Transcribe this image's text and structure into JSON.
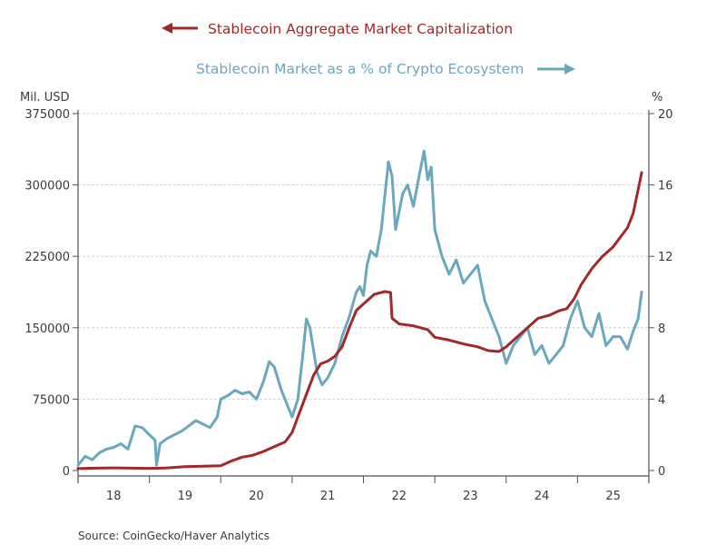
{
  "chart_data": {
    "type": "line",
    "title": "",
    "legend": [
      {
        "name": "Stablecoin Aggregate Market Capitalization",
        "axis": "left",
        "color": "#a3282b",
        "arrow": "left"
      },
      {
        "name": "Stablecoin Market as a % of Crypto Ecosystem",
        "axis": "right",
        "color": "#6aa8be",
        "arrow": "right"
      }
    ],
    "legend_placement": "top-center",
    "left_axis": {
      "label": "Mil. USD",
      "range": [
        0,
        375000
      ],
      "ticks": [
        "0",
        "75000",
        "150000",
        "225000",
        "300000",
        "375000"
      ]
    },
    "right_axis": {
      "label": "%",
      "range": [
        0,
        20
      ],
      "ticks": [
        "0",
        "4",
        "8",
        "12",
        "16",
        "20"
      ]
    },
    "x_axis": {
      "range": [
        2018.0,
        2026.0
      ],
      "tick_labels": [
        "18",
        "19",
        "20",
        "21",
        "22",
        "23",
        "24",
        "25"
      ]
    },
    "grid": "horizontal dashed",
    "source": "Source:  CoinGecko/Haver Analytics",
    "series": [
      {
        "name": "Stablecoin Aggregate Market Capitalization",
        "axis": "left",
        "x": [
          2018.0,
          2018.25,
          2018.5,
          2018.75,
          2019.0,
          2019.1,
          2019.25,
          2019.5,
          2019.75,
          2020.0,
          2020.15,
          2020.3,
          2020.45,
          2020.6,
          2020.75,
          2020.9,
          2021.0,
          2021.1,
          2021.2,
          2021.3,
          2021.4,
          2021.5,
          2021.6,
          2021.7,
          2021.8,
          2021.9,
          2022.0,
          2022.15,
          2022.3,
          2022.38,
          2022.4,
          2022.5,
          2022.7,
          2022.9,
          2023.0,
          2023.2,
          2023.4,
          2023.6,
          2023.75,
          2023.9,
          2024.0,
          2024.15,
          2024.3,
          2024.45,
          2024.6,
          2024.75,
          2024.85,
          2024.95,
          2025.05,
          2025.2,
          2025.35,
          2025.5,
          2025.6,
          2025.7,
          2025.78,
          2025.85,
          2025.9
        ],
        "values": [
          2000,
          2500,
          2800,
          2500,
          2300,
          2400,
          2800,
          4000,
          4500,
          5000,
          10000,
          14000,
          16000,
          20000,
          25000,
          30000,
          40000,
          60000,
          80000,
          100000,
          112000,
          115000,
          120000,
          130000,
          150000,
          168000,
          175000,
          185000,
          188000,
          187000,
          160000,
          154000,
          152000,
          148000,
          140000,
          137000,
          133000,
          130000,
          126000,
          125000,
          130000,
          140000,
          150000,
          160000,
          163000,
          168000,
          170000,
          180000,
          195000,
          212000,
          225000,
          235000,
          245000,
          255000,
          270000,
          295000,
          313000
        ]
      },
      {
        "name": "Stablecoin Market as a % of Crypto Ecosystem",
        "axis": "right",
        "x": [
          2018.0,
          2018.1,
          2018.2,
          2018.3,
          2018.4,
          2018.5,
          2018.6,
          2018.7,
          2018.8,
          2018.9,
          2019.0,
          2019.08,
          2019.1,
          2019.15,
          2019.25,
          2019.35,
          2019.45,
          2019.55,
          2019.65,
          2019.75,
          2019.85,
          2019.95,
          2020.0,
          2020.1,
          2020.2,
          2020.3,
          2020.4,
          2020.5,
          2020.6,
          2020.68,
          2020.75,
          2020.85,
          2020.95,
          2021.0,
          2021.08,
          2021.15,
          2021.2,
          2021.25,
          2021.35,
          2021.42,
          2021.5,
          2021.6,
          2021.7,
          2021.8,
          2021.9,
          2021.95,
          2022.0,
          2022.05,
          2022.1,
          2022.18,
          2022.25,
          2022.35,
          2022.4,
          2022.45,
          2022.55,
          2022.62,
          2022.7,
          2022.78,
          2022.85,
          2022.9,
          2022.95,
          2023.0,
          2023.1,
          2023.2,
          2023.3,
          2023.4,
          2023.5,
          2023.6,
          2023.7,
          2023.8,
          2023.9,
          2024.0,
          2024.1,
          2024.2,
          2024.3,
          2024.4,
          2024.5,
          2024.6,
          2024.7,
          2024.8,
          2024.9,
          2025.0,
          2025.1,
          2025.2,
          2025.3,
          2025.4,
          2025.5,
          2025.6,
          2025.7,
          2025.78,
          2025.85,
          2025.9
        ],
        "values": [
          0.3,
          0.8,
          0.6,
          1.0,
          1.2,
          1.3,
          1.5,
          1.2,
          2.5,
          2.4,
          2.0,
          1.7,
          0.3,
          1.5,
          1.8,
          2.0,
          2.2,
          2.5,
          2.8,
          2.6,
          2.4,
          3.0,
          4.0,
          4.2,
          4.5,
          4.3,
          4.4,
          4.0,
          5.0,
          6.1,
          5.8,
          4.5,
          3.5,
          3.0,
          4.0,
          6.5,
          8.5,
          8.0,
          5.5,
          4.8,
          5.2,
          6.0,
          7.5,
          8.6,
          10.0,
          10.3,
          9.8,
          11.5,
          12.3,
          12.0,
          13.5,
          17.3,
          16.5,
          13.5,
          15.5,
          16.0,
          14.8,
          16.5,
          17.9,
          16.3,
          17.0,
          13.5,
          12.0,
          11.0,
          11.8,
          10.5,
          11.0,
          11.5,
          9.5,
          8.5,
          7.5,
          6.0,
          7.0,
          7.5,
          8.0,
          6.5,
          7.0,
          6.0,
          6.5,
          7.0,
          8.5,
          9.5,
          8.0,
          7.5,
          8.8,
          7.0,
          7.5,
          7.5,
          6.8,
          7.8,
          8.5,
          10.0
        ]
      }
    ]
  }
}
